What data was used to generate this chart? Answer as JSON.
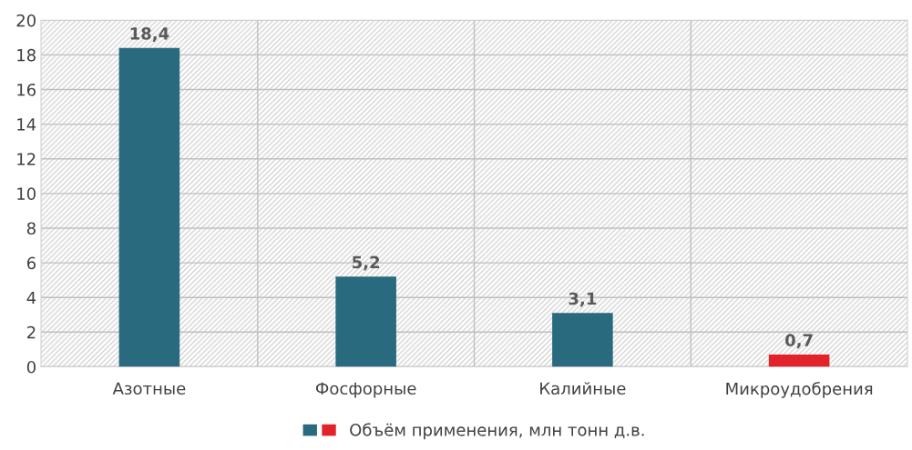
{
  "chart_data": {
    "type": "bar",
    "categories": [
      "Азотные",
      "Фосфорные",
      "Калийные",
      "Микроудобрения"
    ],
    "series": [
      {
        "name": "Объём применения, млн тонн д.в.",
        "colors": [
          "#2a6a7e",
          "#2a6a7e",
          "#2a6a7e",
          "#e3232c"
        ],
        "values": [
          18.4,
          5.2,
          3.1,
          0.7
        ],
        "value_labels": [
          "18,4",
          "5,2",
          "3,1",
          "0,7"
        ]
      }
    ],
    "ylim": [
      0,
      20
    ],
    "yticks": [
      0,
      2,
      4,
      6,
      8,
      10,
      12,
      14,
      16,
      18,
      20
    ],
    "grid": true,
    "legend": "bottom"
  }
}
